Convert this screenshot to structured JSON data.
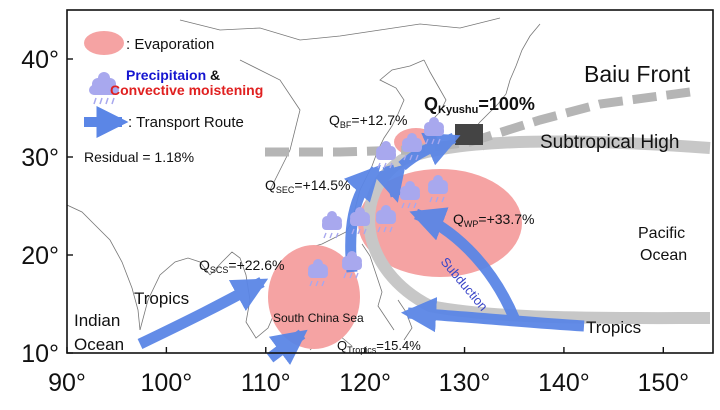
{
  "axes": {
    "y_ticks": [
      "10°",
      "20°",
      "30°",
      "40°"
    ],
    "x_ticks": [
      "90°",
      "100°",
      "110°",
      "120°",
      "130°",
      "140°",
      "150°"
    ],
    "lon_range": [
      90,
      155
    ],
    "lat_range": [
      10,
      45
    ]
  },
  "legend": {
    "evaporation": ": Evaporation",
    "precip_blue": "Precipitaion",
    "precip_amp": " &",
    "precip_red": "Convective moistening",
    "transport": ": Transport Route"
  },
  "residual": "Residual = 1.18%",
  "labels": {
    "baiu_front": "Baiu Front",
    "subtropical_high": "Subtropical High",
    "pacific": "Pacific",
    "ocean": "Ocean",
    "tropics_left": "Tropics",
    "tropics_right": "Tropics",
    "indian": "Indian",
    "indian_ocean": "Ocean",
    "south_china_sea": "South China Sea",
    "subduction": "Subduction"
  },
  "fluxes": {
    "kyushu_q": "Q",
    "kyushu_sub": "Kyushu",
    "kyushu_val": "=100%",
    "bf_q": "Q",
    "bf_sub": "BF",
    "bf_val": "=+12.7%",
    "sec_q": "Q",
    "sec_sub": "SEC",
    "sec_val": "=+14.5%",
    "wp_q": "Q",
    "wp_sub": "WP",
    "wp_val": "=+33.7%",
    "scs_q": "Q",
    "scs_sub": "SCS",
    "scs_val": "=+22.6%",
    "tropics_q": "Q",
    "tropics_sub": "Tropics",
    "tropics_val": "=15.4%"
  },
  "colors": {
    "evaporation": "#f5a3a3",
    "transport": "#5b86e6",
    "cloud": "#a8a8ee",
    "front": "#b5b5b5",
    "precip_text": "#1515d0",
    "convective_text": "#e02020"
  }
}
